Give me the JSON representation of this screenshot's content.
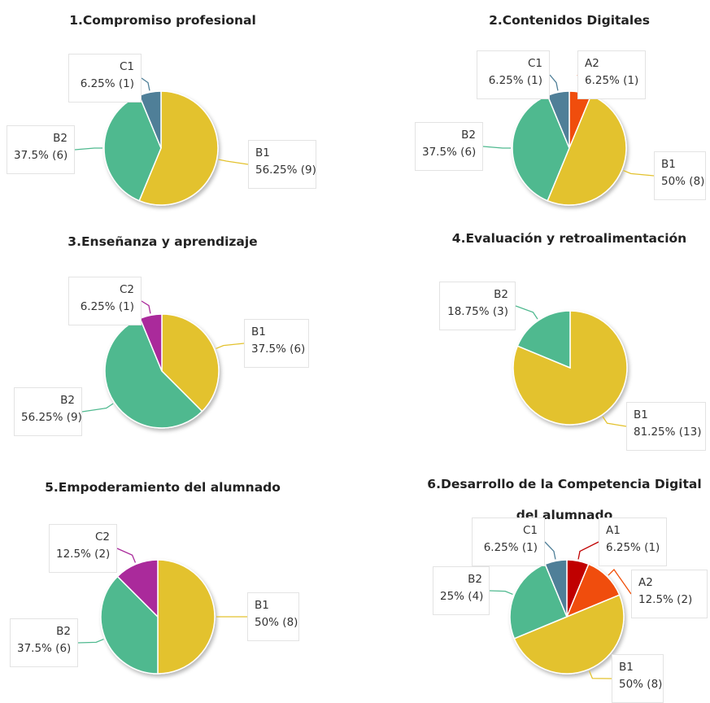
{
  "colors": {
    "A1": "#c00000",
    "A2": "#f04e08",
    "B1": "#e3c22e",
    "B2": "#4fb98f",
    "C1": "#4f7f98",
    "C2": "#aa2a9b"
  },
  "chart_data": [
    {
      "type": "pie",
      "title": "1.Compromiso profesional",
      "slices": [
        {
          "label": "B1",
          "value": 9,
          "text": "56.25% (9)"
        },
        {
          "label": "B2",
          "value": 6,
          "text": "37.5% (6)"
        },
        {
          "label": "C1",
          "value": 1,
          "text": "6.25% (1)"
        }
      ]
    },
    {
      "type": "pie",
      "title": "2.Contenidos Digitales",
      "slices": [
        {
          "label": "A2",
          "value": 1,
          "text": "6.25% (1)"
        },
        {
          "label": "B1",
          "value": 8,
          "text": "50% (8)"
        },
        {
          "label": "B2",
          "value": 6,
          "text": "37.5% (6)"
        },
        {
          "label": "C1",
          "value": 1,
          "text": "6.25% (1)"
        }
      ]
    },
    {
      "type": "pie",
      "title": "3.Enseñanza y aprendizaje",
      "slices": [
        {
          "label": "B1",
          "value": 6,
          "text": "37.5% (6)"
        },
        {
          "label": "B2",
          "value": 9,
          "text": "56.25% (9)"
        },
        {
          "label": "C2",
          "value": 1,
          "text": "6.25% (1)"
        }
      ]
    },
    {
      "type": "pie",
      "title": "4.Evaluación y retroalimentación",
      "slices": [
        {
          "label": "B1",
          "value": 13,
          "text": "81.25% (13)"
        },
        {
          "label": "B2",
          "value": 3,
          "text": "18.75% (3)"
        }
      ]
    },
    {
      "type": "pie",
      "title": "5.Empoderamiento del alumnado",
      "slices": [
        {
          "label": "B1",
          "value": 8,
          "text": "50% (8)"
        },
        {
          "label": "B2",
          "value": 6,
          "text": "37.5% (6)"
        },
        {
          "label": "C2",
          "value": 2,
          "text": "12.5% (2)"
        }
      ]
    },
    {
      "type": "pie",
      "title": "6.Desarrollo de la Competencia Digital del alumnado",
      "slices": [
        {
          "label": "A1",
          "value": 1,
          "text": "6.25% (1)"
        },
        {
          "label": "A2",
          "value": 2,
          "text": "12.5% (2)"
        },
        {
          "label": "B1",
          "value": 8,
          "text": "50% (8)"
        },
        {
          "label": "B2",
          "value": 4,
          "text": "25% (4)"
        },
        {
          "label": "C1",
          "value": 1,
          "text": "6.25% (1)"
        }
      ]
    }
  ]
}
